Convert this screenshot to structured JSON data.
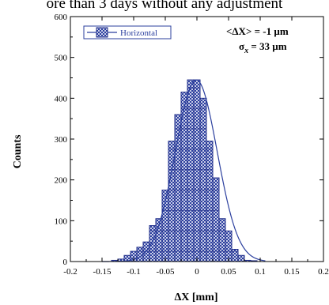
{
  "page": {
    "top_caption": "ore than 3 days without any adjustment"
  },
  "chart_data": {
    "type": "bar",
    "title": "",
    "xlabel": "ΔX [mm]",
    "ylabel": "Counts",
    "xlim": [
      -0.2,
      0.2
    ],
    "ylim": [
      0,
      600
    ],
    "x_ticks": [
      "-0.2",
      "-0.15",
      "-0.1",
      "-0.05",
      "0",
      "0.05",
      "0.1",
      "0.15",
      "0.2"
    ],
    "y_ticks": [
      "0",
      "100",
      "200",
      "300",
      "400",
      "500",
      "600"
    ],
    "bin_width": 0.01,
    "bin_centers": [
      -0.13,
      -0.12,
      -0.11,
      -0.1,
      -0.09,
      -0.08,
      -0.07,
      -0.06,
      -0.05,
      -0.04,
      -0.03,
      -0.02,
      -0.01,
      0.0,
      0.01,
      0.02,
      0.03,
      0.04,
      0.05,
      0.06,
      0.07,
      0.08,
      0.09
    ],
    "values": [
      3,
      6,
      15,
      25,
      35,
      48,
      88,
      105,
      175,
      295,
      360,
      415,
      445,
      445,
      400,
      295,
      205,
      105,
      75,
      30,
      15,
      3,
      2
    ],
    "series": [
      {
        "name": "Horizontal",
        "color": "#2b3f9e"
      }
    ],
    "fit_curve": {
      "type": "gaussian",
      "mean": -0.001,
      "sigma": 0.033,
      "amplitude": 445,
      "color": "#2b3f9e"
    },
    "legend": {
      "placement": "top-left",
      "entries": [
        "Horizontal"
      ]
    },
    "annotations": {
      "mean_label": "<ΔX> = -1 µm",
      "sigma_prefix": "σ",
      "sigma_subscript": "x",
      "sigma_value": " = 33 µm"
    },
    "colors": {
      "bar_fill": "#8a93c6",
      "bar_stroke": "#1f2d8a",
      "axis": "#000000"
    }
  }
}
